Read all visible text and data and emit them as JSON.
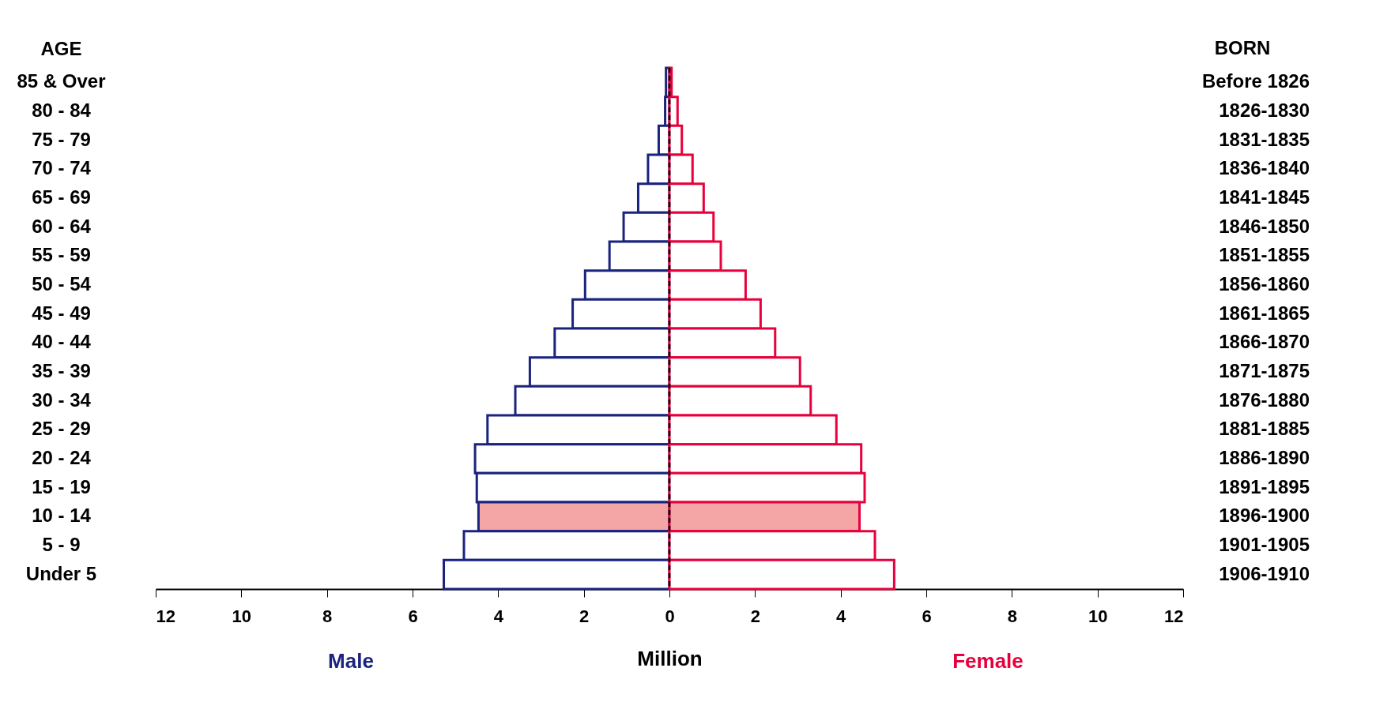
{
  "chart_data": {
    "type": "bar",
    "orientation": "horizontal",
    "stacked": true,
    "xlabel": "Million",
    "ylabel": "AGE",
    "y2label": "BORN",
    "categories": [
      "85 & Over",
      "80 - 84",
      "75 - 79",
      "70 - 74",
      "65 - 69",
      "60 - 64",
      "55 - 59",
      "50 - 54",
      "45 - 49",
      "40 - 44",
      "35 - 39",
      "30 - 34",
      "25 - 29",
      "20 - 24",
      "15 - 19",
      "10 - 14",
      "5 - 9",
      "Under 5"
    ],
    "y2_categories": [
      "Before 1826",
      "1826-1830",
      "1831-1835",
      "1836-1840",
      "1841-1845",
      "1846-1850",
      "1851-1855",
      "1856-1860",
      "1861-1865",
      "1866-1870",
      "1871-1875",
      "1876-1880",
      "1881-1885",
      "1886-1890",
      "1891-1895",
      "1896-1900",
      "1901-1905",
      "1906-1910"
    ],
    "series": [
      {
        "name": "Male",
        "color": "#1a237e",
        "values": [
          -0.08,
          -0.1,
          -0.25,
          -0.5,
          -0.73,
          -1.07,
          -1.4,
          -1.97,
          -2.26,
          -2.68,
          -3.26,
          -3.6,
          -4.25,
          -4.54,
          -4.5,
          -4.46,
          -4.8,
          -5.27
        ],
        "colors": [
          "#ffffff",
          "#ffffff",
          "#ffffff",
          "#ffffff",
          "#ffffff",
          "#ffffff",
          "#ffffff",
          "#ffffff",
          "#ffffff",
          "#ffffff",
          "#ffffff",
          "#ffffff",
          "#ffffff",
          "#ffffff",
          "#ffffff",
          "#f4a6a6",
          "#ffffff",
          "#ffffff"
        ]
      },
      {
        "name": "Female",
        "color": "#e8003d",
        "values": [
          0.05,
          0.19,
          0.29,
          0.54,
          0.8,
          1.03,
          1.2,
          1.78,
          2.13,
          2.47,
          3.05,
          3.3,
          3.9,
          4.48,
          4.56,
          4.44,
          4.8,
          5.25
        ],
        "colors": [
          "#ffffff",
          "#ffffff",
          "#ffffff",
          "#ffffff",
          "#ffffff",
          "#ffffff",
          "#ffffff",
          "#ffffff",
          "#ffffff",
          "#ffffff",
          "#ffffff",
          "#ffffff",
          "#ffffff",
          "#ffffff",
          "#ffffff",
          "#f4a6a6",
          "#ffffff",
          "#ffffff"
        ]
      }
    ],
    "xlim": [
      -12,
      12
    ],
    "xticks": [
      {
        "value": -12,
        "label": "12"
      },
      {
        "value": -10,
        "label": "10"
      },
      {
        "value": -8,
        "label": "8"
      },
      {
        "value": -6,
        "label": "6"
      },
      {
        "value": -4,
        "label": "4"
      },
      {
        "value": -2,
        "label": "2"
      },
      0,
      2,
      4,
      6,
      8,
      10,
      12
    ],
    "ref_lines": [
      {
        "axis": "x",
        "value": 0,
        "line_style": "dashed",
        "color": "#000000"
      }
    ],
    "grid": false
  }
}
